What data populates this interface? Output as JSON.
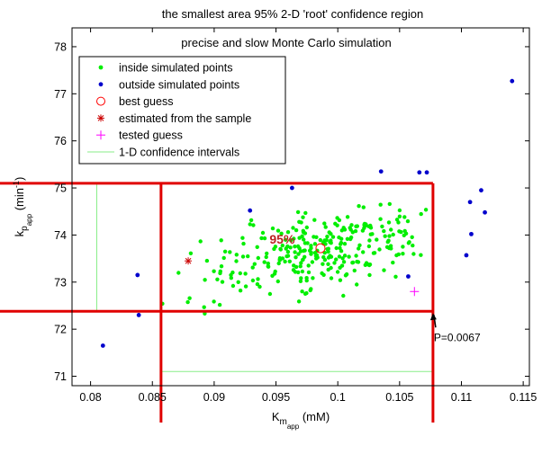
{
  "chart_data": {
    "type": "scatter",
    "title": "the smallest area 95% 2-D 'root' confidence region",
    "subtitle": "precise and slow Monte Carlo simulation",
    "xlabel": {
      "main": "K",
      "sub": "m",
      "subsub": "app",
      "unit": "(mM)"
    },
    "ylabel": {
      "main": "k",
      "sub": "p",
      "subsub": "app",
      "unit": "(min",
      "unit_sup": "-1",
      "unit_close": ")"
    },
    "xlim": [
      0.0785,
      0.1155
    ],
    "ylim": [
      70.8,
      78.4
    ],
    "xticks": [
      0.08,
      0.085,
      0.09,
      0.095,
      0.1,
      0.105,
      0.11,
      0.115
    ],
    "xtick_labels": [
      "0.08",
      "0.085",
      "0.09",
      "0.095",
      "0.1",
      "0.105",
      "0.11",
      "0.115"
    ],
    "yticks": [
      71,
      72,
      73,
      74,
      75,
      76,
      77,
      78
    ],
    "ytick_labels": [
      "71",
      "72",
      "73",
      "74",
      "75",
      "76",
      "77",
      "78"
    ],
    "legend": {
      "placement": "top-left",
      "entries": [
        {
          "label": "inside simulated points",
          "marker": "dot",
          "color": "#00ee00"
        },
        {
          "label": "outside simulated points",
          "marker": "dot",
          "color": "#0000cc"
        },
        {
          "label": "best guess",
          "marker": "circle",
          "color": "#ff0000"
        },
        {
          "label": "estimated from the sample",
          "marker": "asterisk",
          "color": "#cc0000"
        },
        {
          "label": "tested guess",
          "marker": "plus",
          "color": "#ff00ff"
        },
        {
          "label": "1-D confidence intervals",
          "marker": "line",
          "color": "#88ee88"
        }
      ]
    },
    "region_label": "95%",
    "annotation": "P=0.0067",
    "colors": {
      "inside": "#00ee00",
      "outside": "#0000cc",
      "bounds": "#e00000",
      "interval": "#88ee88",
      "tested": "#ff00ff",
      "best": "#ff0000",
      "region_label": "#bb2222"
    },
    "series": {
      "outside": [
        [
          0.081,
          71.65
        ],
        [
          0.0838,
          73.15
        ],
        [
          0.0839,
          72.3
        ],
        [
          0.0929,
          74.52
        ],
        [
          0.0963,
          75.0
        ],
        [
          0.1035,
          75.35
        ],
        [
          0.1066,
          75.33
        ],
        [
          0.1072,
          75.33
        ],
        [
          0.1057,
          73.12
        ],
        [
          0.1104,
          73.57
        ],
        [
          0.1108,
          74.02
        ],
        [
          0.1107,
          74.7
        ],
        [
          0.1116,
          74.95
        ],
        [
          0.1119,
          74.48
        ],
        [
          0.1141,
          77.27
        ]
      ],
      "inside_count": 300,
      "inside_center": [
        0.0985,
        73.65
      ],
      "inside_spread": [
        0.0048,
        0.5
      ],
      "inside_correlation": 0.55
    },
    "best_guess": [
      0.0986,
      73.72
    ],
    "estimated": [
      0.0879,
      73.45
    ],
    "tested_guess": [
      0.1062,
      72.8
    ],
    "interval_x": [
      0.0857,
      0.1077
    ],
    "interval_y": [
      71.1,
      75.1
    ],
    "bounds": {
      "x": [
        0.0857,
        0.1077
      ],
      "y": [
        72.38,
        75.1
      ]
    },
    "region_bounds": {
      "x": [
        0.0805,
        0.1077
      ],
      "y": [
        71.1,
        75.1
      ]
    }
  }
}
